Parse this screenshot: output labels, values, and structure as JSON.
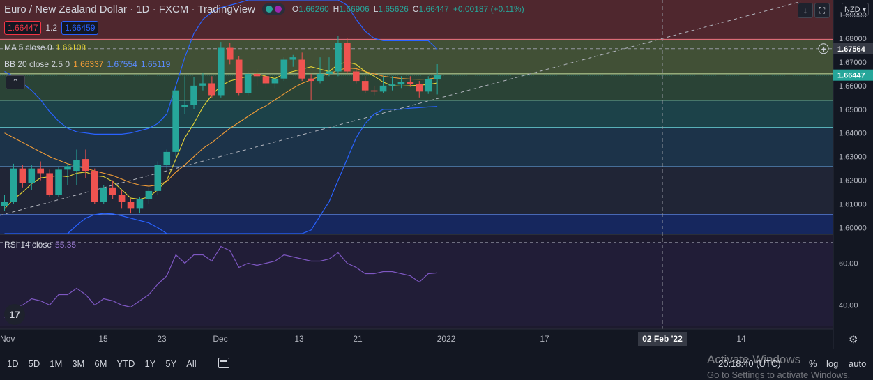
{
  "header": {
    "symbol": "Euro / New Zealand Dollar",
    "interval": "1D",
    "exchange": "FXCM",
    "provider": "TradingView",
    "open_label": "O",
    "open": "1.66260",
    "high_label": "H",
    "high": "1.66906",
    "low_label": "L",
    "low": "1.65626",
    "close_label": "C",
    "close": "1.66447",
    "change": "+0.00187 (+0.11%)"
  },
  "trade": {
    "sell": "1.66447",
    "spread": "1.2",
    "buy": "1.66459"
  },
  "legend": {
    "ma_name": "MA 5 close 0",
    "ma_value": "1.66108",
    "bb_name": "BB 20 close 2.5 0",
    "bb_basis": "1.66337",
    "bb_upper": "1.67554",
    "bb_lower": "1.65119",
    "rsi_name": "RSI 14 close",
    "rsi_value": "55.35"
  },
  "toolbar": {
    "currency": "NZD",
    "scroll_icon": "arrow-down-icon",
    "fullscreen_icon": "fullscreen-icon"
  },
  "price_axis": {
    "ticks": [
      "1.69000",
      "1.68000",
      "1.67000",
      "1.66000",
      "1.65000",
      "1.64000",
      "1.63000",
      "1.62000",
      "1.61000",
      "1.60000"
    ],
    "last_price_label": "1.66447",
    "crosshair_price_label": "1.67564"
  },
  "rsi_axis": {
    "ticks": [
      "60.00",
      "40.00"
    ]
  },
  "time_axis": {
    "labels": [
      "Nov",
      "15",
      "23",
      "Dec",
      "13",
      "21",
      "2022",
      "17",
      "14"
    ],
    "crosshair_label": "02 Feb '22"
  },
  "bottom_bar": {
    "ranges": [
      "1D",
      "5D",
      "1M",
      "3M",
      "6M",
      "YTD",
      "1Y",
      "5Y",
      "All"
    ],
    "time": "20:18:40 (UTC)",
    "percent": "%",
    "log": "log",
    "auto": "auto",
    "watermark_1": "Activate Windows",
    "watermark_2": "Go to Settings to activate Windows."
  },
  "colors": {
    "up": "#26a69a",
    "down": "#ef5350",
    "ma": "#e6d435",
    "bb_basis": "#f39d37",
    "bb_band": "#2962ff",
    "rsi": "#7e57c2",
    "background": "#131722"
  },
  "chart_data": {
    "type": "candlestick",
    "y_range": [
      1.5975,
      1.6962
    ],
    "rsi_range": [
      28.5,
      73.5
    ],
    "zones": [
      {
        "from": 1.6796,
        "to": 1.6962,
        "color": "#5a2a30"
      },
      {
        "from": 1.665,
        "to": 1.6796,
        "color": "#4a5a3a"
      },
      {
        "from": 1.6538,
        "to": 1.665,
        "color": "#2f4b3a"
      },
      {
        "from": 1.6424,
        "to": 1.6538,
        "color": "#1f4a50"
      },
      {
        "from": 1.6258,
        "to": 1.6424,
        "color": "#1e3850"
      },
      {
        "from": 1.6055,
        "to": 1.6258,
        "color": "#23283a"
      },
      {
        "from": 1.5975,
        "to": 1.6055,
        "color": "#172a68"
      }
    ],
    "level_lines": [
      1.6796,
      1.665,
      1.6538,
      1.6424,
      1.6258,
      1.6055
    ],
    "level_colors": [
      "#f07080",
      "#c8e0a0",
      "#8fd0a0",
      "#60c0c8",
      "#70a8e8",
      "#6090ff"
    ],
    "crosshair_price": 1.67564,
    "candles": [
      {
        "o": 1.609,
        "h": 1.614,
        "l": 1.607,
        "c": 1.611
      },
      {
        "o": 1.611,
        "h": 1.627,
        "l": 1.61,
        "c": 1.625
      },
      {
        "o": 1.625,
        "h": 1.6265,
        "l": 1.617,
        "c": 1.619
      },
      {
        "o": 1.619,
        "h": 1.6265,
        "l": 1.616,
        "c": 1.625
      },
      {
        "o": 1.625,
        "h": 1.628,
        "l": 1.62,
        "c": 1.623
      },
      {
        "o": 1.623,
        "h": 1.6245,
        "l": 1.613,
        "c": 1.614
      },
      {
        "o": 1.614,
        "h": 1.6255,
        "l": 1.613,
        "c": 1.6245
      },
      {
        "o": 1.6245,
        "h": 1.627,
        "l": 1.618,
        "c": 1.626
      },
      {
        "o": 1.624,
        "h": 1.633,
        "l": 1.618,
        "c": 1.6285
      },
      {
        "o": 1.629,
        "h": 1.633,
        "l": 1.621,
        "c": 1.624
      },
      {
        "o": 1.624,
        "h": 1.625,
        "l": 1.61,
        "c": 1.611
      },
      {
        "o": 1.611,
        "h": 1.618,
        "l": 1.61,
        "c": 1.617
      },
      {
        "o": 1.617,
        "h": 1.62,
        "l": 1.612,
        "c": 1.614
      },
      {
        "o": 1.614,
        "h": 1.616,
        "l": 1.608,
        "c": 1.611
      },
      {
        "o": 1.611,
        "h": 1.612,
        "l": 1.606,
        "c": 1.608
      },
      {
        "o": 1.608,
        "h": 1.613,
        "l": 1.606,
        "c": 1.612
      },
      {
        "o": 1.612,
        "h": 1.617,
        "l": 1.61,
        "c": 1.6155
      },
      {
        "o": 1.6155,
        "h": 1.628,
        "l": 1.614,
        "c": 1.6265
      },
      {
        "o": 1.6265,
        "h": 1.633,
        "l": 1.6245,
        "c": 1.632
      },
      {
        "o": 1.632,
        "h": 1.659,
        "l": 1.63,
        "c": 1.658
      },
      {
        "o": 1.651,
        "h": 1.664,
        "l": 1.648,
        "c": 1.652
      },
      {
        "o": 1.652,
        "h": 1.6635,
        "l": 1.65,
        "c": 1.66
      },
      {
        "o": 1.66,
        "h": 1.6655,
        "l": 1.658,
        "c": 1.661
      },
      {
        "o": 1.661,
        "h": 1.664,
        "l": 1.655,
        "c": 1.656
      },
      {
        "o": 1.656,
        "h": 1.6785,
        "l": 1.655,
        "c": 1.676
      },
      {
        "o": 1.676,
        "h": 1.678,
        "l": 1.669,
        "c": 1.671
      },
      {
        "o": 1.671,
        "h": 1.6725,
        "l": 1.656,
        "c": 1.657
      },
      {
        "o": 1.657,
        "h": 1.666,
        "l": 1.656,
        "c": 1.665
      },
      {
        "o": 1.665,
        "h": 1.667,
        "l": 1.66,
        "c": 1.664
      },
      {
        "o": 1.664,
        "h": 1.666,
        "l": 1.659,
        "c": 1.661
      },
      {
        "o": 1.661,
        "h": 1.664,
        "l": 1.659,
        "c": 1.663
      },
      {
        "o": 1.663,
        "h": 1.672,
        "l": 1.662,
        "c": 1.671
      },
      {
        "o": 1.671,
        "h": 1.673,
        "l": 1.668,
        "c": 1.672
      },
      {
        "o": 1.671,
        "h": 1.674,
        "l": 1.662,
        "c": 1.663
      },
      {
        "o": 1.663,
        "h": 1.665,
        "l": 1.654,
        "c": 1.662
      },
      {
        "o": 1.662,
        "h": 1.672,
        "l": 1.661,
        "c": 1.665
      },
      {
        "o": 1.665,
        "h": 1.672,
        "l": 1.664,
        "c": 1.666
      },
      {
        "o": 1.666,
        "h": 1.681,
        "l": 1.664,
        "c": 1.678
      },
      {
        "o": 1.678,
        "h": 1.68,
        "l": 1.665,
        "c": 1.666
      },
      {
        "o": 1.666,
        "h": 1.667,
        "l": 1.661,
        "c": 1.662
      },
      {
        "o": 1.662,
        "h": 1.664,
        "l": 1.657,
        "c": 1.658
      },
      {
        "o": 1.658,
        "h": 1.66,
        "l": 1.656,
        "c": 1.6575
      },
      {
        "o": 1.6575,
        "h": 1.664,
        "l": 1.657,
        "c": 1.66
      },
      {
        "o": 1.66,
        "h": 1.664,
        "l": 1.658,
        "c": 1.6605
      },
      {
        "o": 1.6605,
        "h": 1.664,
        "l": 1.659,
        "c": 1.6615
      },
      {
        "o": 1.6615,
        "h": 1.664,
        "l": 1.6595,
        "c": 1.6608
      },
      {
        "o": 1.6608,
        "h": 1.662,
        "l": 1.655,
        "c": 1.6575
      },
      {
        "o": 1.6575,
        "h": 1.664,
        "l": 1.6565,
        "c": 1.6628
      },
      {
        "o": 1.6626,
        "h": 1.6691,
        "l": 1.6563,
        "c": 1.6645
      }
    ],
    "ma5": [
      1.608,
      1.612,
      1.615,
      1.6185,
      1.621,
      1.6215,
      1.622,
      1.6215,
      1.623,
      1.6235,
      1.622,
      1.6215,
      1.6195,
      1.616,
      1.6125,
      1.612,
      1.613,
      1.616,
      1.62,
      1.629,
      1.638,
      1.644,
      1.651,
      1.656,
      1.66,
      1.662,
      1.663,
      1.664,
      1.665,
      1.664,
      1.663,
      1.665,
      1.666,
      1.667,
      1.668,
      1.667,
      1.666,
      1.669,
      1.67,
      1.669,
      1.666,
      1.664,
      1.6615,
      1.66,
      1.6598,
      1.66,
      1.6602,
      1.6605,
      1.6611
    ],
    "bb_basis": [
      1.64,
      1.638,
      1.636,
      1.634,
      1.632,
      1.63,
      1.6285,
      1.627,
      1.626,
      1.625,
      1.624,
      1.623,
      1.622,
      1.6205,
      1.619,
      1.618,
      1.6175,
      1.618,
      1.6195,
      1.6235,
      1.6265,
      1.63,
      1.6335,
      1.636,
      1.639,
      1.642,
      1.6445,
      1.647,
      1.6495,
      1.6515,
      1.654,
      1.6565,
      1.659,
      1.661,
      1.6625,
      1.664,
      1.665,
      1.6665,
      1.6675,
      1.6672,
      1.666,
      1.665,
      1.664,
      1.6635,
      1.663,
      1.6628,
      1.6627,
      1.6628,
      1.6634
    ],
    "bb_upper": [
      1.666,
      1.664,
      1.661,
      1.658,
      1.654,
      1.649,
      1.645,
      1.642,
      1.6405,
      1.64,
      1.6395,
      1.6395,
      1.6395,
      1.6395,
      1.64,
      1.641,
      1.642,
      1.644,
      1.648,
      1.66,
      1.672,
      1.682,
      1.688,
      1.691,
      1.693,
      1.694,
      1.695,
      1.6962,
      1.6962,
      1.6962,
      1.6962,
      1.6962,
      1.6962,
      1.6962,
      1.6962,
      1.6962,
      1.6962,
      1.6962,
      1.694,
      1.688,
      1.683,
      1.68,
      1.679,
      1.679,
      1.679,
      1.679,
      1.679,
      1.679,
      1.6755
    ],
    "bb_lower": [
      1.5975,
      1.5975,
      1.5975,
      1.5975,
      1.5975,
      1.5975,
      1.5975,
      1.5975,
      1.5975,
      1.5975,
      1.5975,
      1.5975,
      1.5975,
      1.5975,
      1.5975,
      1.5975,
      1.5975,
      1.5975,
      1.5975,
      1.5975,
      1.5975,
      1.5975,
      1.5975,
      1.5975,
      1.5975,
      1.5975,
      1.5975,
      1.5975,
      1.5975,
      1.5975,
      1.5975,
      1.5975,
      1.5975,
      1.5975,
      1.599,
      1.605,
      1.611,
      1.62,
      1.629,
      1.638,
      1.644,
      1.648,
      1.65,
      1.65,
      1.65,
      1.6505,
      1.6507,
      1.651,
      1.6512
    ],
    "bb_lower_left": [
      1.5975,
      1.601,
      1.604,
      1.6055,
      1.606,
      1.6058,
      1.605,
      1.604,
      1.603,
      1.602,
      1.6,
      1.5975
    ],
    "rsi": [
      34,
      39,
      40,
      43,
      42,
      40,
      45,
      45,
      48,
      45,
      40,
      43,
      42,
      40,
      39,
      42,
      45,
      50,
      54,
      64,
      60,
      64,
      64,
      61,
      68,
      66,
      58,
      60,
      59,
      60,
      61,
      64,
      63,
      62,
      61,
      61,
      62,
      65,
      60,
      58,
      55,
      55,
      56,
      56,
      55,
      54,
      51,
      55,
      55.35
    ]
  }
}
